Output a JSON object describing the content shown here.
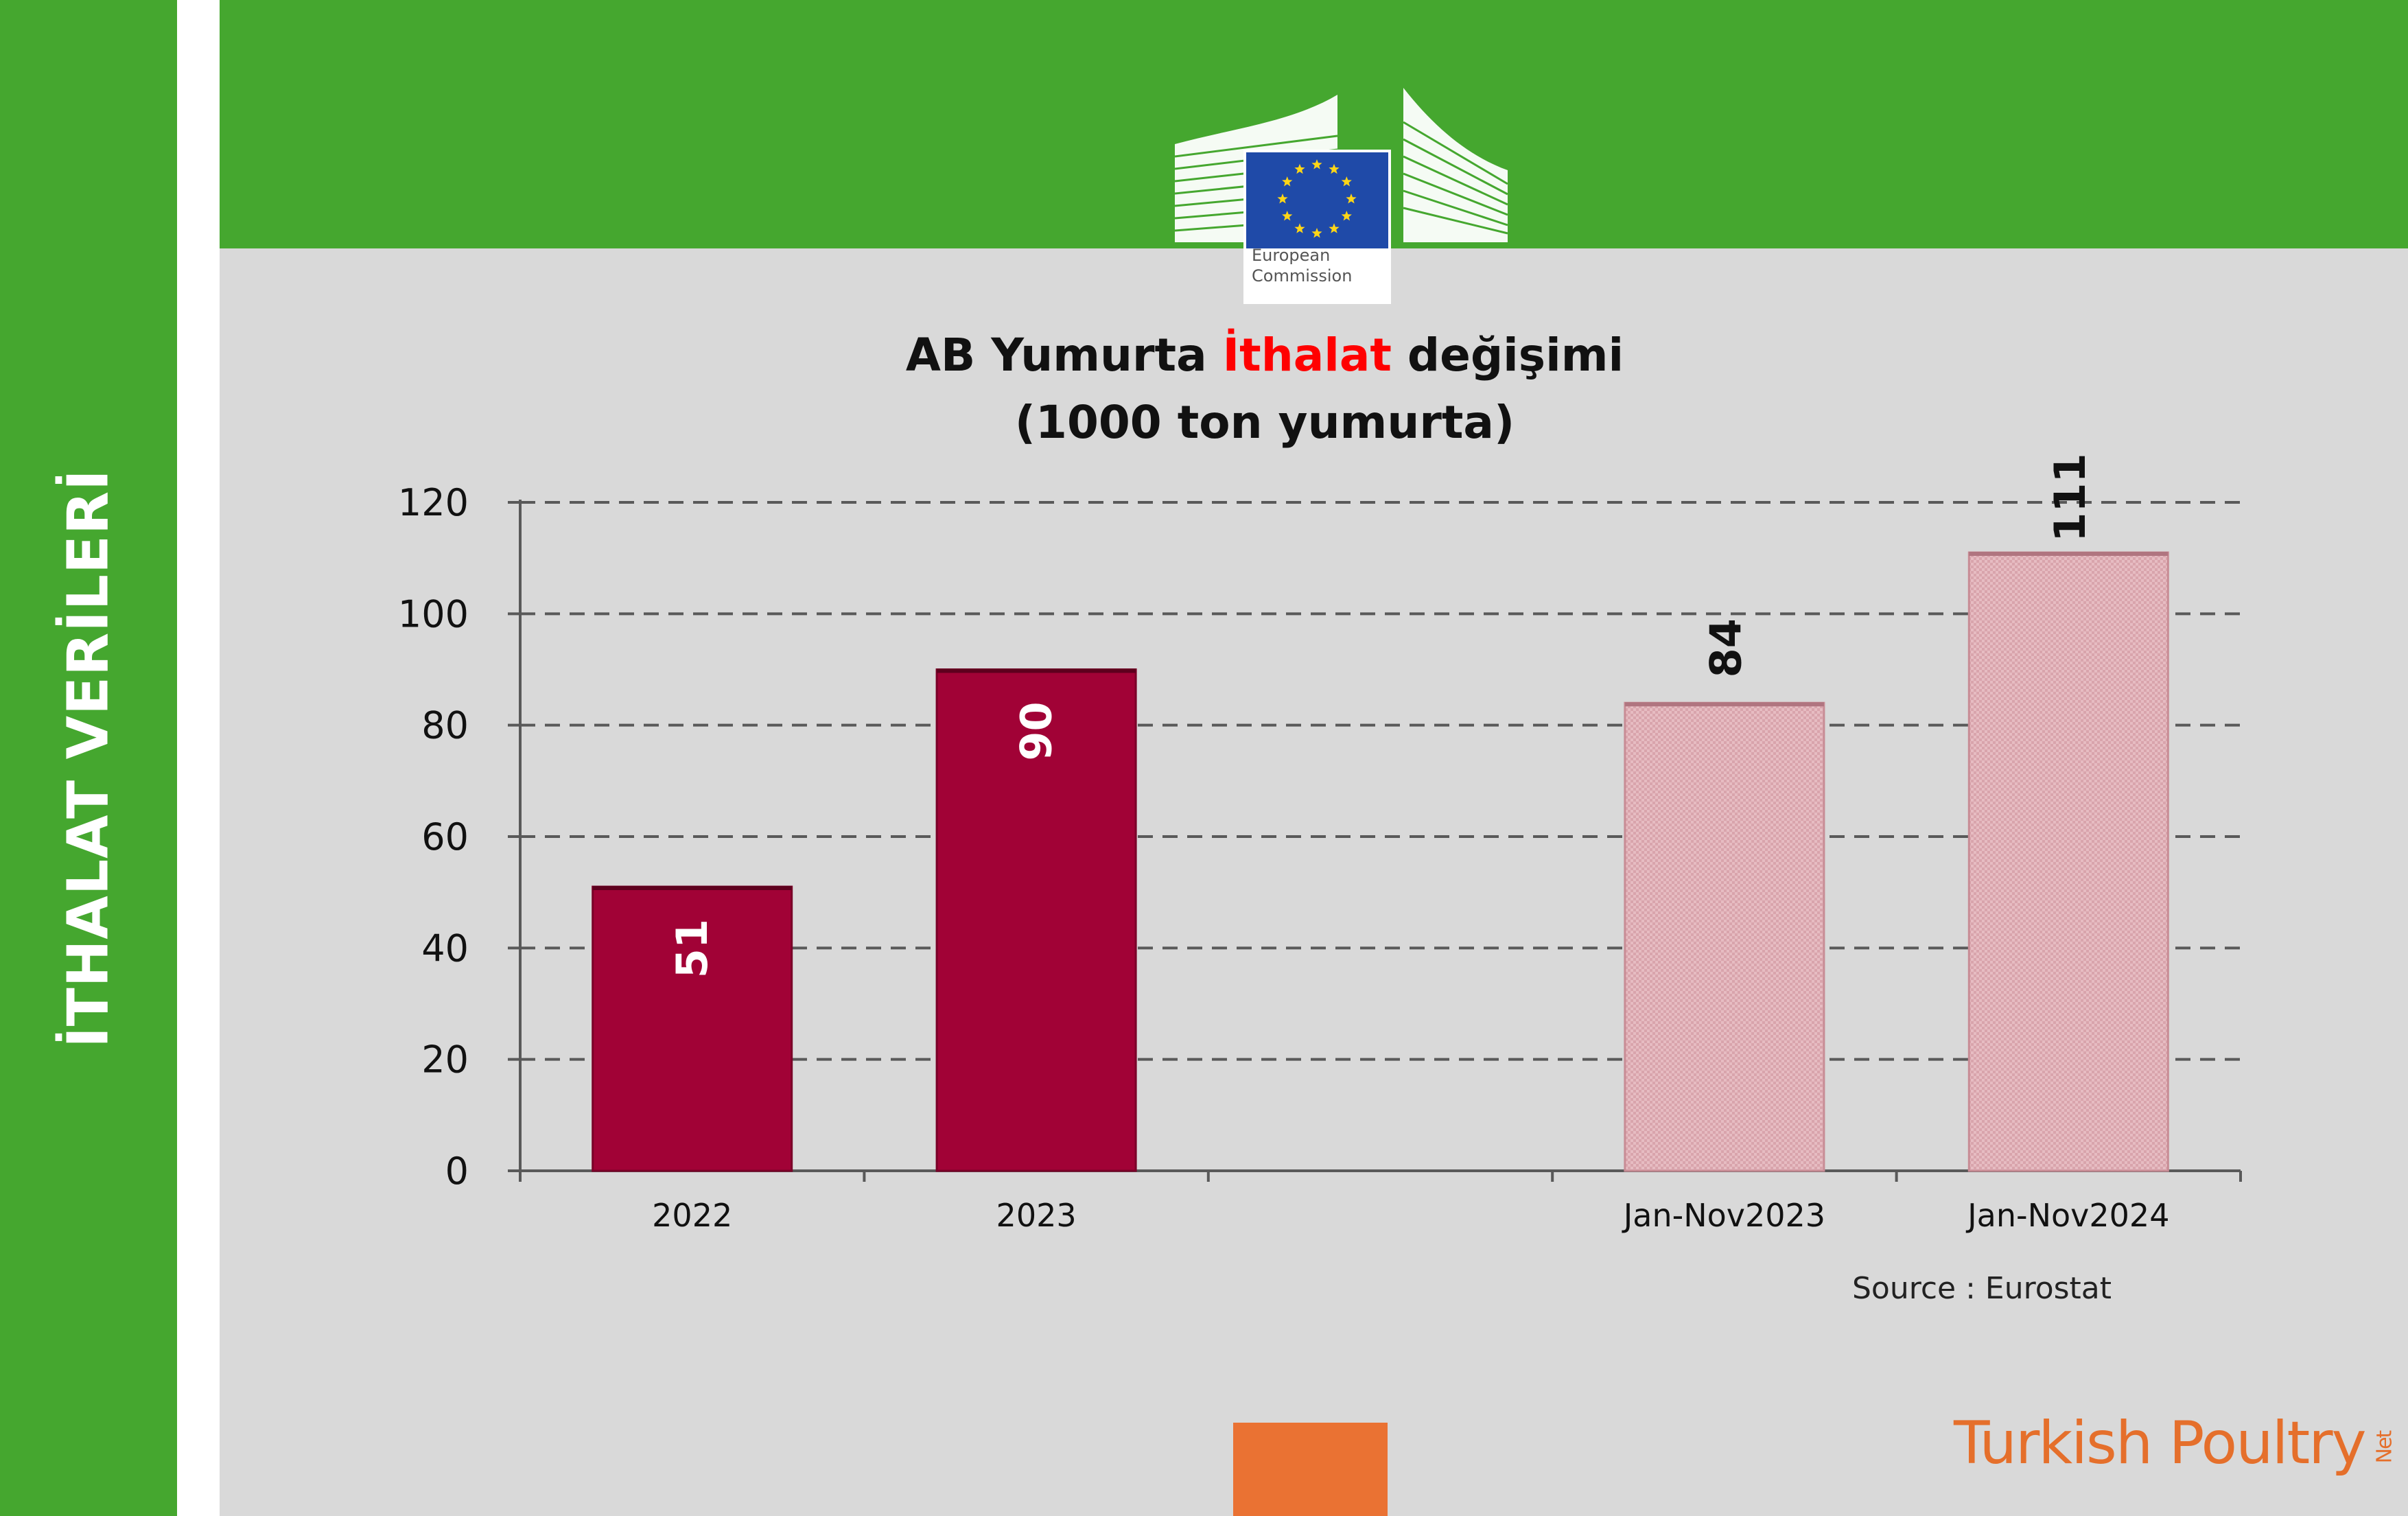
{
  "sidebar": {
    "title": "İTHALAT VERİLERİ"
  },
  "logo": {
    "line1": "European",
    "line2": "Commission"
  },
  "colors": {
    "green": "#45a72f",
    "panel": "#d9d9d9",
    "bar_dark": "#a10236",
    "bar_light": "#e2b6bc",
    "title_highlight": "#ff0000",
    "orange": "#ea7233"
  },
  "chart_data": {
    "type": "bar",
    "title_parts": [
      "AB Yumurta ",
      "İthalat",
      " değişimi"
    ],
    "subtitle": "(1000 ton yumurta)",
    "categories": [
      "2022",
      "2023",
      "",
      "Jan-Nov2023",
      "Jan-Nov2024"
    ],
    "values": [
      51,
      90,
      null,
      84,
      111
    ],
    "data_labels": [
      "51",
      "90",
      "",
      "84",
      "111"
    ],
    "bar_styles": [
      "dark",
      "dark",
      "",
      "light",
      "light"
    ],
    "yticks": [
      "0",
      "20",
      "40",
      "60",
      "80",
      "100",
      "120"
    ],
    "ylim": [
      0,
      120
    ],
    "grid": true,
    "source": "Source : Eurostat"
  },
  "footer": {
    "brand_main": "Turkish Poultry",
    "brand_suffix": "Net"
  }
}
